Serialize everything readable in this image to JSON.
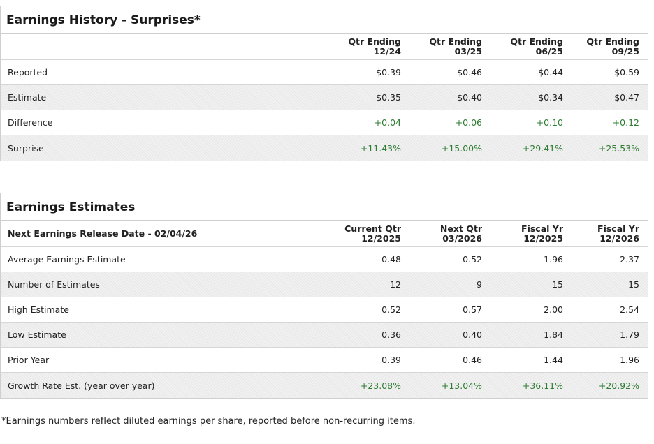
{
  "history": {
    "title": "Earnings History - Surprises*",
    "header_label": "",
    "columns": [
      {
        "line1": "Qtr Ending",
        "line2": "12/24"
      },
      {
        "line1": "Qtr Ending",
        "line2": "03/25"
      },
      {
        "line1": "Qtr Ending",
        "line2": "06/25"
      },
      {
        "line1": "Qtr Ending",
        "line2": "09/25"
      }
    ],
    "rows": [
      {
        "label": "Reported",
        "values": [
          "$0.39",
          "$0.46",
          "$0.44",
          "$0.59"
        ]
      },
      {
        "label": "Estimate",
        "values": [
          "$0.35",
          "$0.40",
          "$0.34",
          "$0.47"
        ]
      },
      {
        "label": "Difference",
        "values": [
          "+0.04",
          "+0.06",
          "+0.10",
          "+0.12"
        ]
      },
      {
        "label": "Surprise",
        "values": [
          "+11.43%",
          "+15.00%",
          "+29.41%",
          "+25.53%"
        ]
      }
    ]
  },
  "estimates": {
    "title": "Earnings Estimates",
    "header_label": "Next Earnings Release Date - 02/04/26",
    "columns": [
      {
        "line1": "Current Qtr",
        "line2": "12/2025"
      },
      {
        "line1": "Next Qtr",
        "line2": "03/2026"
      },
      {
        "line1": "Fiscal Yr",
        "line2": "12/2025"
      },
      {
        "line1": "Fiscal Yr",
        "line2": "12/2026"
      }
    ],
    "rows": [
      {
        "label": "Average Earnings Estimate",
        "values": [
          "0.48",
          "0.52",
          "1.96",
          "2.37"
        ]
      },
      {
        "label": "Number of Estimates",
        "values": [
          "12",
          "9",
          "15",
          "15"
        ]
      },
      {
        "label": "High Estimate",
        "values": [
          "0.52",
          "0.57",
          "2.00",
          "2.54"
        ]
      },
      {
        "label": "Low Estimate",
        "values": [
          "0.36",
          "0.40",
          "1.84",
          "1.79"
        ]
      },
      {
        "label": "Prior Year",
        "values": [
          "0.39",
          "0.46",
          "1.44",
          "1.96"
        ]
      },
      {
        "label": "Growth Rate Est. (year over year)",
        "values": [
          "+23.08%",
          "+13.04%",
          "+36.11%",
          "+20.92%"
        ]
      }
    ]
  },
  "footnote": "*Earnings numbers reflect diluted earnings per share, reported before non-recurring items.",
  "colors": {
    "positive": "#2e7d32",
    "border": "#cfcfcf",
    "shade": "#f1f1f1"
  }
}
